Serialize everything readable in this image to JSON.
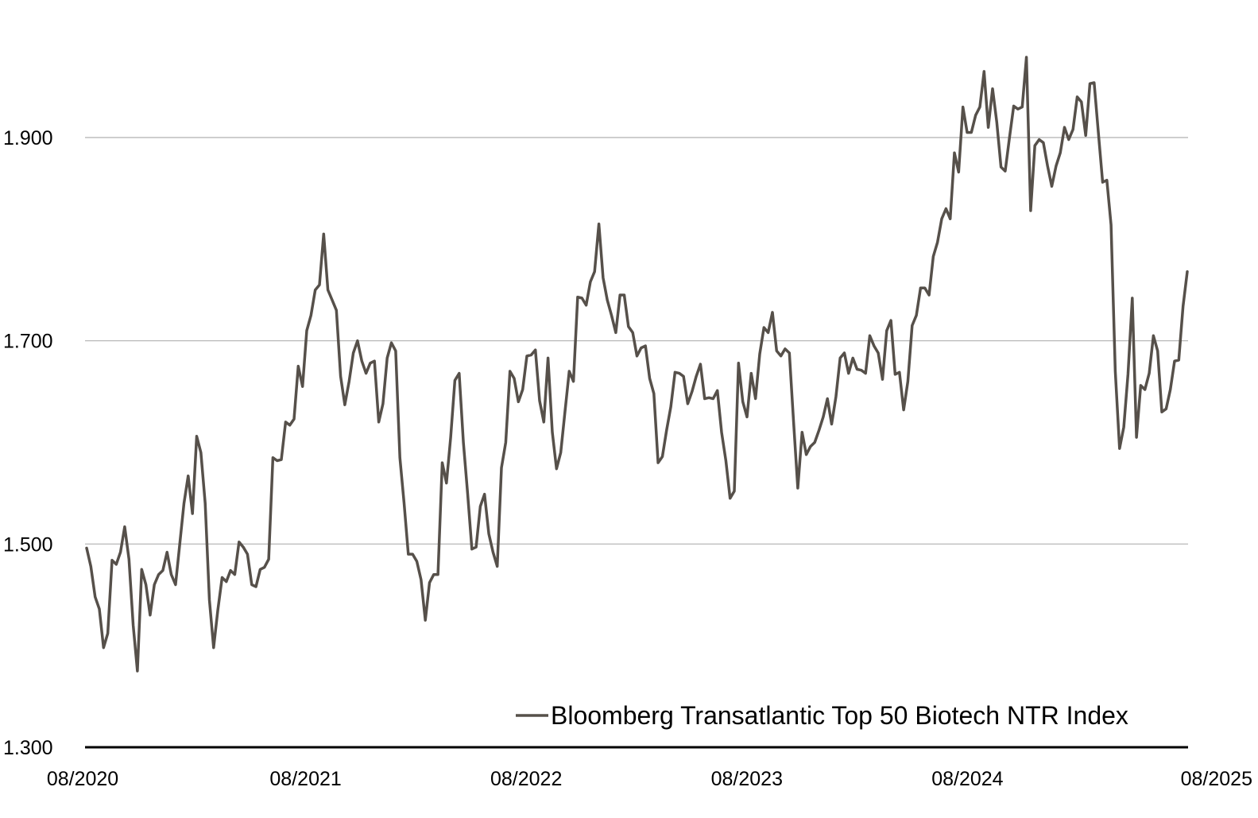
{
  "chart_data": {
    "type": "line",
    "x_tick_labels": [
      "08/2020",
      "08/2021",
      "08/2022",
      "08/2023",
      "08/2024",
      "08/2025"
    ],
    "y_tick_labels": [
      "1.300",
      "1.500",
      "1.700",
      "1.900"
    ],
    "y_ticks": [
      1.3,
      1.5,
      1.7,
      1.9
    ],
    "ylim": [
      1.3,
      2.0
    ],
    "xlim": [
      "08/2020",
      "08/2025"
    ],
    "grid": "horizontal",
    "legend_position": "bottom-right",
    "series": [
      {
        "name": "Bloomberg Transatlantic Top 50 Biotech NTR Index",
        "color": "#56504a",
        "values": [
          1.496,
          1.478,
          1.448,
          1.436,
          1.398,
          1.412,
          1.484,
          1.48,
          1.492,
          1.517,
          1.485,
          1.42,
          1.375,
          1.475,
          1.46,
          1.43,
          1.46,
          1.47,
          1.474,
          1.492,
          1.47,
          1.46,
          1.5,
          1.54,
          1.567,
          1.53,
          1.606,
          1.59,
          1.54,
          1.445,
          1.398,
          1.435,
          1.467,
          1.463,
          1.474,
          1.47,
          1.502,
          1.497,
          1.49,
          1.46,
          1.458,
          1.475,
          1.477,
          1.485,
          1.585,
          1.582,
          1.583,
          1.62,
          1.617,
          1.623,
          1.675,
          1.655,
          1.71,
          1.725,
          1.75,
          1.755,
          1.805,
          1.75,
          1.74,
          1.73,
          1.665,
          1.637,
          1.66,
          1.688,
          1.7,
          1.68,
          1.668,
          1.678,
          1.68,
          1.62,
          1.638,
          1.683,
          1.698,
          1.69,
          1.585,
          1.54,
          1.49,
          1.49,
          1.483,
          1.465,
          1.425,
          1.462,
          1.47,
          1.47,
          1.58,
          1.56,
          1.605,
          1.661,
          1.668,
          1.6,
          1.55,
          1.495,
          1.497,
          1.537,
          1.549,
          1.51,
          1.492,
          1.478,
          1.575,
          1.6,
          1.67,
          1.663,
          1.64,
          1.652,
          1.685,
          1.686,
          1.691,
          1.641,
          1.62,
          1.683,
          1.61,
          1.574,
          1.59,
          1.63,
          1.67,
          1.66,
          1.743,
          1.742,
          1.735,
          1.758,
          1.768,
          1.815,
          1.762,
          1.74,
          1.725,
          1.708,
          1.745,
          1.745,
          1.714,
          1.708,
          1.685,
          1.693,
          1.695,
          1.663,
          1.648,
          1.58,
          1.586,
          1.612,
          1.635,
          1.669,
          1.668,
          1.665,
          1.638,
          1.65,
          1.665,
          1.677,
          1.643,
          1.644,
          1.643,
          1.651,
          1.61,
          1.582,
          1.545,
          1.552,
          1.678,
          1.64,
          1.625,
          1.668,
          1.643,
          1.687,
          1.713,
          1.708,
          1.728,
          1.69,
          1.685,
          1.692,
          1.688,
          1.62,
          1.555,
          1.61,
          1.588,
          1.596,
          1.6,
          1.612,
          1.625,
          1.643,
          1.618,
          1.645,
          1.683,
          1.688,
          1.668,
          1.683,
          1.672,
          1.671,
          1.668,
          1.705,
          1.695,
          1.688,
          1.662,
          1.71,
          1.72,
          1.667,
          1.669,
          1.632,
          1.66,
          1.715,
          1.725,
          1.752,
          1.752,
          1.745,
          1.783,
          1.797,
          1.82,
          1.83,
          1.82,
          1.885,
          1.866,
          1.93,
          1.905,
          1.905,
          1.922,
          1.93,
          1.965,
          1.91,
          1.948,
          1.915,
          1.871,
          1.867,
          1.9,
          1.931,
          1.928,
          1.93,
          1.979,
          1.828,
          1.892,
          1.898,
          1.895,
          1.872,
          1.852,
          1.872,
          1.885,
          1.91,
          1.898,
          1.908,
          1.94,
          1.935,
          1.902,
          1.953,
          1.954,
          1.905,
          1.856,
          1.858,
          1.814,
          1.67,
          1.594,
          1.615,
          1.667,
          1.742,
          1.605,
          1.656,
          1.652,
          1.668,
          1.705,
          1.69,
          1.63,
          1.633,
          1.652,
          1.68,
          1.681,
          1.734,
          1.768
        ]
      }
    ]
  }
}
